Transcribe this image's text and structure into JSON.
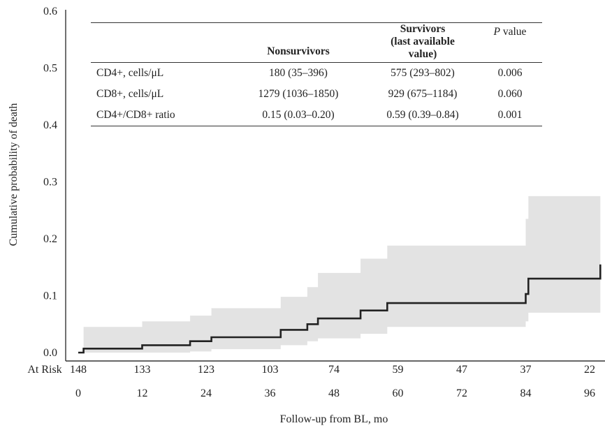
{
  "chart_data": {
    "type": "line",
    "subtype": "kaplan-meier cumulative incidence step curve with confidence band",
    "ylabel": "Cumulative probability of death",
    "xlabel": "Follow-up from BL, mo",
    "xlim": [
      0,
      98
    ],
    "ylim": [
      0,
      0.6
    ],
    "x_ticks": [
      "0",
      "12",
      "24",
      "36",
      "48",
      "60",
      "72",
      "84",
      "96"
    ],
    "y_ticks": [
      "0.0",
      "0.1",
      "0.2",
      "0.3",
      "0.4",
      "0.5",
      "0.6"
    ],
    "grid": false,
    "curve": {
      "x": [
        0,
        1,
        2,
        12,
        21,
        25,
        38,
        43,
        45,
        53,
        58,
        84,
        84.5,
        98
      ],
      "y": [
        0,
        0.007,
        0.007,
        0.013,
        0.02,
        0.027,
        0.04,
        0.05,
        0.06,
        0.074,
        0.087,
        0.103,
        0.13,
        0.155
      ],
      "color": "#222222"
    },
    "ci_band": {
      "x": [
        0,
        1,
        2,
        12,
        21,
        25,
        38,
        43,
        45,
        53,
        58,
        84,
        84.5,
        98
      ],
      "lower": [
        0,
        0,
        0,
        0,
        0.002,
        0.006,
        0.013,
        0.02,
        0.025,
        0.033,
        0.045,
        0.055,
        0.07,
        0.085
      ],
      "upper": [
        0,
        0.045,
        0.045,
        0.055,
        0.065,
        0.078,
        0.098,
        0.115,
        0.14,
        0.165,
        0.188,
        0.235,
        0.275,
        0.275
      ],
      "color": "#e3e3e3"
    },
    "at_risk": {
      "label": "At Risk",
      "months": [
        0,
        12,
        24,
        36,
        48,
        60,
        72,
        84,
        96
      ],
      "counts": [
        "148",
        "133",
        "123",
        "103",
        "74",
        "59",
        "47",
        "37",
        "22"
      ]
    }
  },
  "inset_table": {
    "header": {
      "col1": "Nonsurvivors",
      "col2_line1": "Survivors",
      "col2_line2": "(last available",
      "col2_line3": "value)",
      "col3_italic": "P",
      "col3_rest": " value"
    },
    "rows": [
      {
        "label": "CD4+, cells/μL",
        "non": "180 (35–396)",
        "surv": "575 (293–802)",
        "p": "0.006"
      },
      {
        "label": "CD8+, cells/μL",
        "non": "1279 (1036–1850)",
        "surv": "929 (675–1184)",
        "p": "0.060"
      },
      {
        "label": "CD4+/CD8+ ratio",
        "non": "0.15 (0.03–0.20)",
        "surv": "0.59 (0.39–0.84)",
        "p": "0.001"
      }
    ]
  }
}
